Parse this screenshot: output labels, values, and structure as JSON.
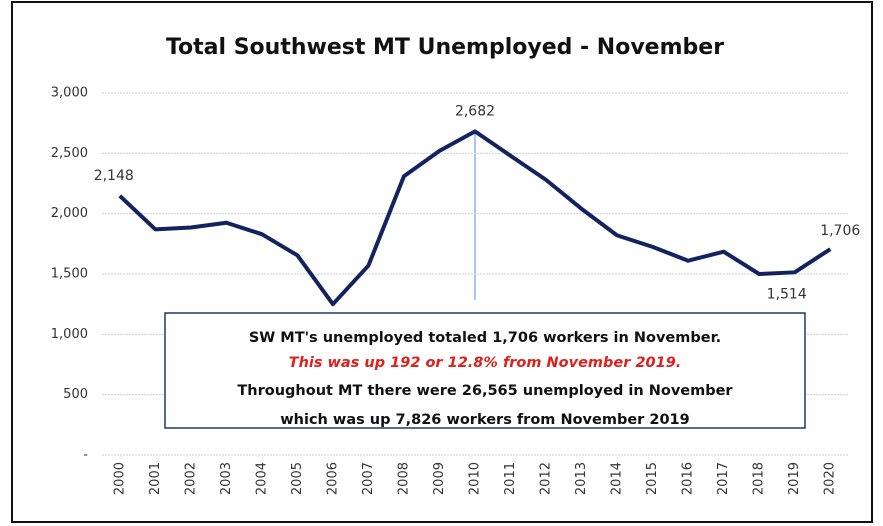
{
  "chart_data": {
    "type": "line",
    "title": "Total Southwest MT Unemployed - November",
    "categories": [
      "2000",
      "2001",
      "2002",
      "2003",
      "2004",
      "2005",
      "2006",
      "2007",
      "2008",
      "2009",
      "2010",
      "2011",
      "2012",
      "2013",
      "2014",
      "2015",
      "2016",
      "2017",
      "2018",
      "2019",
      "2020"
    ],
    "series": [
      {
        "name": "Unemployed",
        "color": "#13235f",
        "values": [
          2148,
          1870,
          1885,
          1925,
          1830,
          1655,
          1250,
          1570,
          2310,
          2520,
          2682,
          2480,
          2280,
          2040,
          1820,
          1725,
          1610,
          1685,
          1500,
          1514,
          1706
        ],
        "value_labels": [
          "2,148",
          null,
          null,
          null,
          null,
          null,
          null,
          null,
          null,
          null,
          "2,682",
          null,
          null,
          null,
          null,
          null,
          null,
          null,
          null,
          "1,514",
          "1,706"
        ]
      }
    ],
    "ylim": [
      0,
      3000
    ],
    "yticks": [
      {
        "value": 0,
        "label": "-"
      },
      500,
      {
        "value": 1000,
        "label": "1,000"
      },
      {
        "value": 1500,
        "label": "1,500"
      },
      {
        "value": 2000,
        "label": "2,000"
      },
      {
        "value": 2500,
        "label": "2,500"
      },
      {
        "value": 3000,
        "label": "3,000"
      }
    ],
    "grid": true,
    "annotations": [
      "SW MT's unemployed totaled 1,706 workers in November.",
      "This was up 192 or 12.8% from November 2019.",
      "Throughout MT there were 26,565 unemployed in November",
      "which was up 7,826 workers from November 2019"
    ]
  }
}
